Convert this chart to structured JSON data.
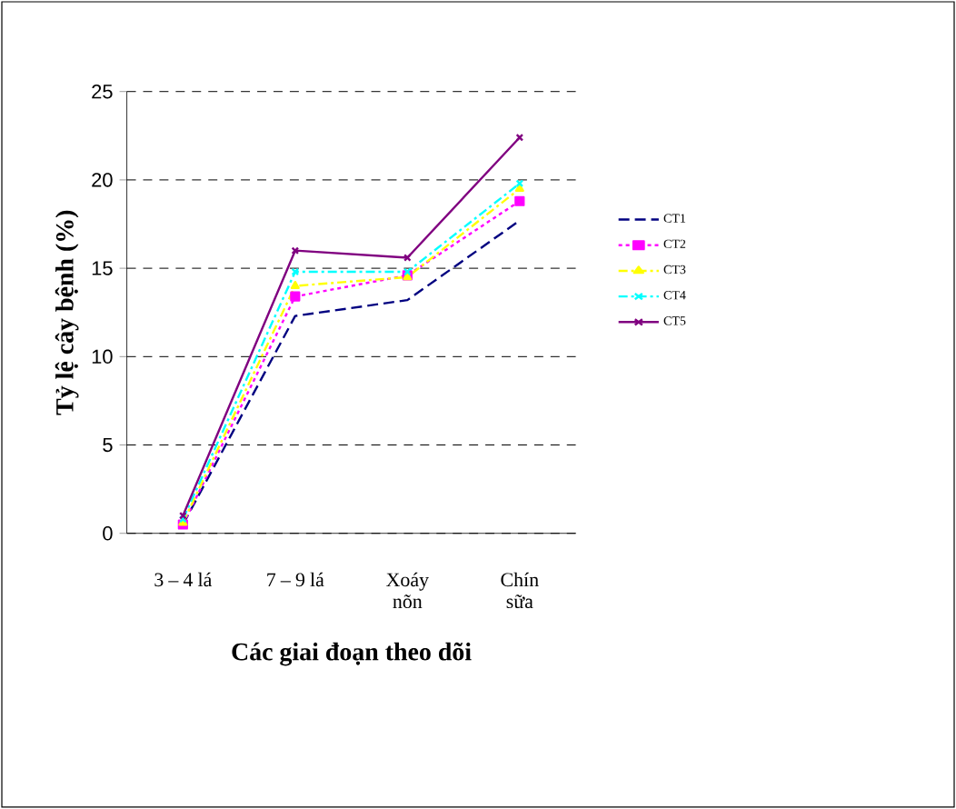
{
  "chart_data": {
    "type": "line",
    "xlabel": "Các giai đoạn theo dõi",
    "ylabel": "Tỷ lệ cây bệnh (%)",
    "categories": [
      "3 – 4 lá",
      "7 – 9 lá",
      "Xoáy nõn",
      "Chín sữa"
    ],
    "ylim": [
      0,
      25
    ],
    "yticks": [
      0,
      5,
      10,
      15,
      20,
      25
    ],
    "grid": "y",
    "legend": "right",
    "series": [
      {
        "name": "CT1",
        "color": "#000080",
        "line_style": "dashed",
        "marker": "none",
        "values": [
          0.5,
          12.3,
          13.2,
          17.7
        ]
      },
      {
        "name": "CT2",
        "color": "#ff00ff",
        "line_style": "dotted",
        "marker": "square",
        "values": [
          0.5,
          13.4,
          14.6,
          18.8
        ]
      },
      {
        "name": "CT3",
        "color": "#ffff00",
        "line_style": "dashdot",
        "marker": "triangle",
        "values": [
          0.6,
          14.0,
          14.5,
          19.5
        ]
      },
      {
        "name": "CT4",
        "color": "#00ffff",
        "line_style": "dashdot",
        "marker": "cross",
        "values": [
          0.8,
          14.8,
          14.8,
          19.8
        ]
      },
      {
        "name": "CT5",
        "color": "#800080",
        "line_style": "solid",
        "marker": "cross",
        "values": [
          1.0,
          16.0,
          15.6,
          22.4
        ]
      }
    ]
  }
}
